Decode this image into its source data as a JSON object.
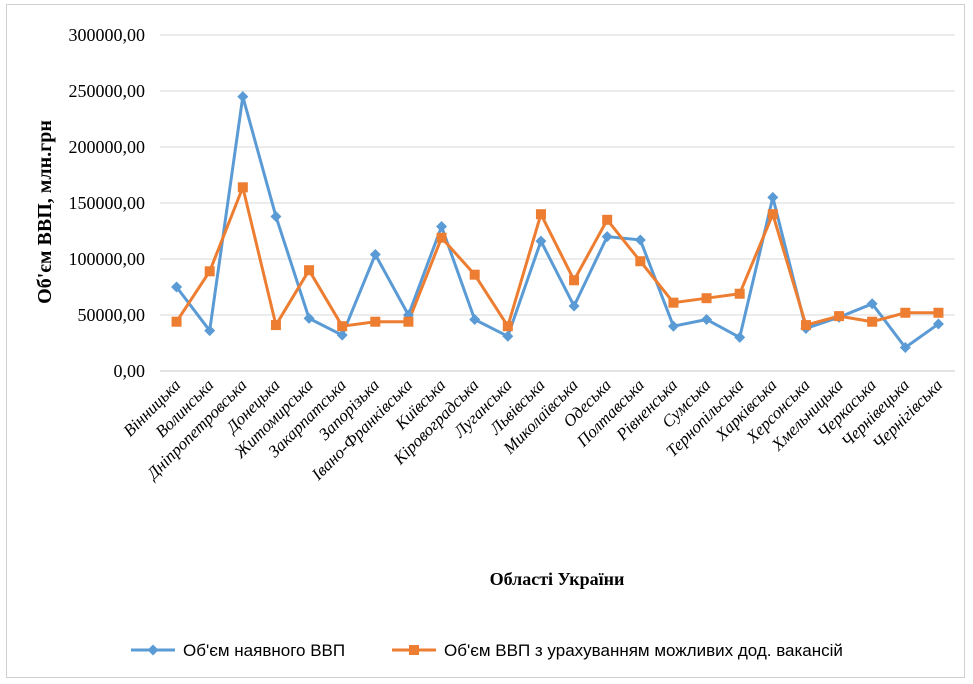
{
  "chart_data": {
    "type": "line",
    "title": "",
    "xlabel": "Області України",
    "ylabel": "Об'єм ВВП, млн.грн",
    "ylim": [
      0,
      300000
    ],
    "yticks": [
      "0,00",
      "50000,00",
      "100000,00",
      "150000,00",
      "200000,00",
      "250000,00",
      "300000,00"
    ],
    "ytick_values": [
      0,
      50000,
      100000,
      150000,
      200000,
      250000,
      300000
    ],
    "grid": true,
    "legend_position": "bottom",
    "categories": [
      "Вінницька",
      "Волинська",
      "Дніпропетровська",
      "Донецька",
      "Житомирська",
      "Закарпатська",
      "Запорізька",
      "Івано-Франківська",
      "Київська",
      "Кіровоградська",
      "Луганська",
      "Львівська",
      "Миколаївська",
      "Одеська",
      "Полтавська",
      "Рівненська",
      "Сумська",
      "Тернопільська",
      "Харківська",
      "Херсонська",
      "Хмельницька",
      "Черкаська",
      "Чернівецька",
      "Чернігівська"
    ],
    "series": [
      {
        "name": "Об'єм наявного ВВП",
        "color": "#5B9BD5",
        "marker": "diamond",
        "values": [
          75000,
          36000,
          245000,
          138000,
          47000,
          32000,
          104000,
          50000,
          129000,
          46000,
          31000,
          116000,
          58000,
          120000,
          117000,
          40000,
          46000,
          30000,
          155000,
          38000,
          48000,
          60000,
          21000,
          42000
        ]
      },
      {
        "name": "Об'єм ВВП з урахуванням  можливих  дод. вакансій",
        "color": "#ED7D31",
        "marker": "square",
        "values": [
          44000,
          89000,
          164000,
          41000,
          90000,
          40000,
          44000,
          44000,
          119000,
          86000,
          40000,
          140000,
          81000,
          135000,
          98000,
          61000,
          65000,
          69000,
          140000,
          41000,
          49000,
          44000,
          52000,
          52000
        ]
      }
    ]
  }
}
